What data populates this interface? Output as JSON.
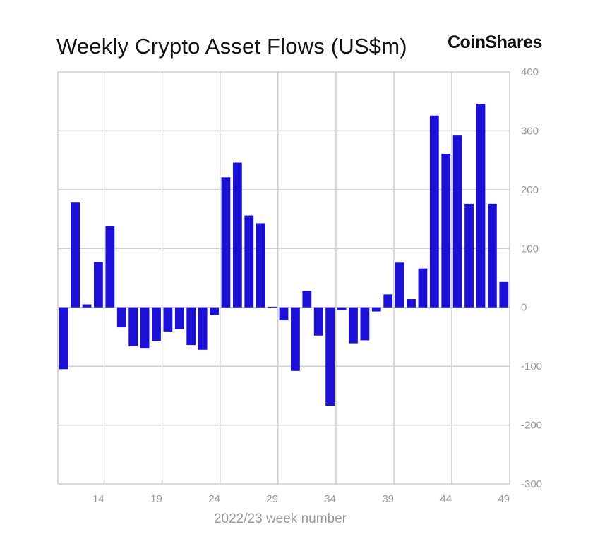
{
  "header": {
    "title": "Weekly Crypto Asset Flows (US$m)",
    "brand": "CoinShares"
  },
  "colors": {
    "bar": "#1d10d6",
    "grid": "#cfcfcf",
    "tick_text": "#9a9a9a"
  },
  "chart_data": {
    "type": "bar",
    "title": "Weekly Crypto Asset Flows (US$m)",
    "xlabel": "2022/23 week number",
    "ylabel": "",
    "ylim": [
      -300,
      400
    ],
    "y_ticks": [
      400,
      300,
      200,
      100,
      0,
      -100,
      -200,
      -300
    ],
    "x_ticks": [
      14,
      19,
      24,
      29,
      34,
      39,
      44,
      49
    ],
    "y_axis_position": "right",
    "grid": true,
    "categories": [
      11,
      12,
      13,
      14,
      15,
      16,
      17,
      18,
      19,
      20,
      21,
      22,
      23,
      24,
      25,
      26,
      27,
      28,
      29,
      30,
      31,
      32,
      33,
      34,
      35,
      36,
      37,
      38,
      39,
      40,
      41,
      42,
      43,
      44,
      45,
      46,
      47,
      48,
      49
    ],
    "values": [
      -105,
      178,
      5,
      77,
      138,
      -34,
      -66,
      -70,
      -57,
      -41,
      -37,
      -64,
      -72,
      -13,
      221,
      246,
      156,
      143,
      1,
      -22,
      -108,
      28,
      -48,
      -167,
      -5,
      -61,
      -56,
      -7,
      22,
      76,
      14,
      66,
      326,
      261,
      292,
      176,
      346,
      176,
      43
    ]
  }
}
